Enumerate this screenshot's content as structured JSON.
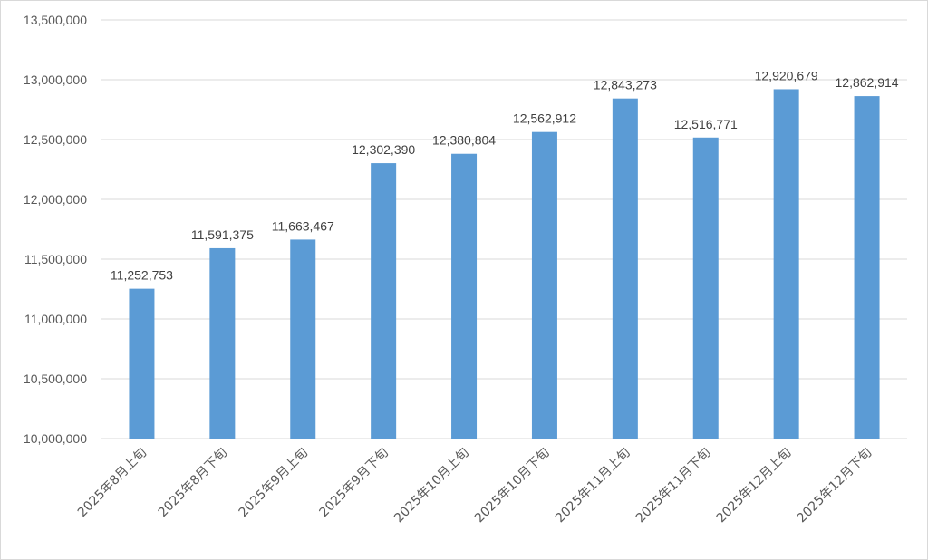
{
  "chart_data": {
    "type": "bar",
    "title": "",
    "xlabel": "",
    "ylabel": "",
    "categories": [
      "2025年8月上旬",
      "2025年8月下旬",
      "2025年9月上旬",
      "2025年9月下旬",
      "2025年10月上旬",
      "2025年10月下旬",
      "2025年11月上旬",
      "2025年11月下旬",
      "2025年12月上旬",
      "2025年12月下旬"
    ],
    "values": [
      11252753,
      11591375,
      11663467,
      12302390,
      12380804,
      12562912,
      12843273,
      12516771,
      12920679,
      12862914
    ],
    "data_labels": [
      "11,252,753",
      "11,591,375",
      "11,663,467",
      "12,302,390",
      "12,380,804",
      "12,562,912",
      "12,843,273",
      "12,516,771",
      "12,920,679",
      "12,862,914"
    ],
    "ylim": [
      10000000,
      13500000
    ],
    "yticks": [
      10000000,
      10500000,
      11000000,
      11500000,
      12000000,
      12500000,
      13000000,
      13500000
    ],
    "ytick_labels": [
      "10,000,000",
      "10,500,000",
      "11,000,000",
      "11,500,000",
      "12,000,000",
      "12,500,000",
      "13,000,000",
      "13,500,000"
    ],
    "grid": true,
    "legend": "none",
    "bar_color": "#5b9bd5",
    "grid_color": "#d9d9d9"
  }
}
